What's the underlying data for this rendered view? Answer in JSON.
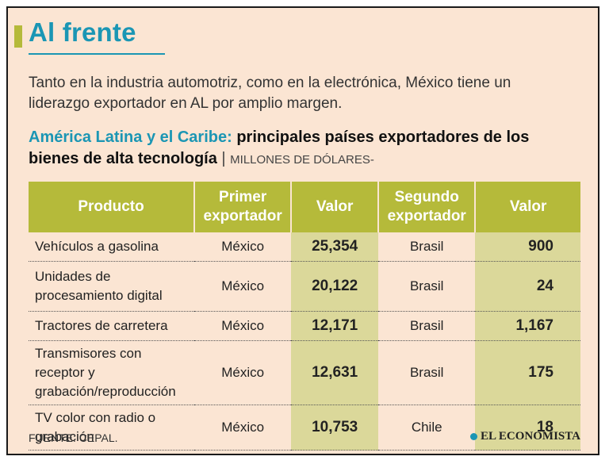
{
  "header": {
    "title": "Al frente",
    "intro": "Tanto en la industria automotriz, como en la electrónica, México tiene un liderazgo exportador en AL por amplio margen.",
    "subtitle_highlight": "América Latina y el Caribe:",
    "subtitle_rest": "principales países exportadores de los bienes de alta tecnología",
    "subtitle_sep": "|",
    "units": "MILLONES DE DÓLARES-"
  },
  "table": {
    "headers": [
      "Producto",
      "Primer exportador",
      "Valor",
      "Segundo exportador",
      "Valor"
    ],
    "rows": [
      {
        "producto": "Vehículos a gasolina",
        "primer": "México",
        "valor1": "25,354",
        "segundo": "Brasil",
        "valor2": "900"
      },
      {
        "producto": "Unidades de procesamiento digital",
        "primer": "México",
        "valor1": "20,122",
        "segundo": "Brasil",
        "valor2": "24"
      },
      {
        "producto": "Tractores de carretera",
        "primer": "México",
        "valor1": "12,171",
        "segundo": "Brasil",
        "valor2": "1,167"
      },
      {
        "producto": "Transmisores con receptor y grabación/reproducción",
        "primer": "México",
        "valor1": "12,631",
        "segundo": "Brasil",
        "valor2": "175"
      },
      {
        "producto": "TV color con radio o grabación",
        "primer": "México",
        "valor1": "10,753",
        "segundo": "Chile",
        "valor2": "18"
      }
    ]
  },
  "footer": {
    "source": "FUENTE: CEPAL.",
    "brand": "EL ECONOMISTA"
  },
  "colors": {
    "background": "#fbe5d3",
    "accent_teal": "#1b96b4",
    "accent_olive": "#b5ba3a",
    "value_fill": "#dbd89a"
  }
}
